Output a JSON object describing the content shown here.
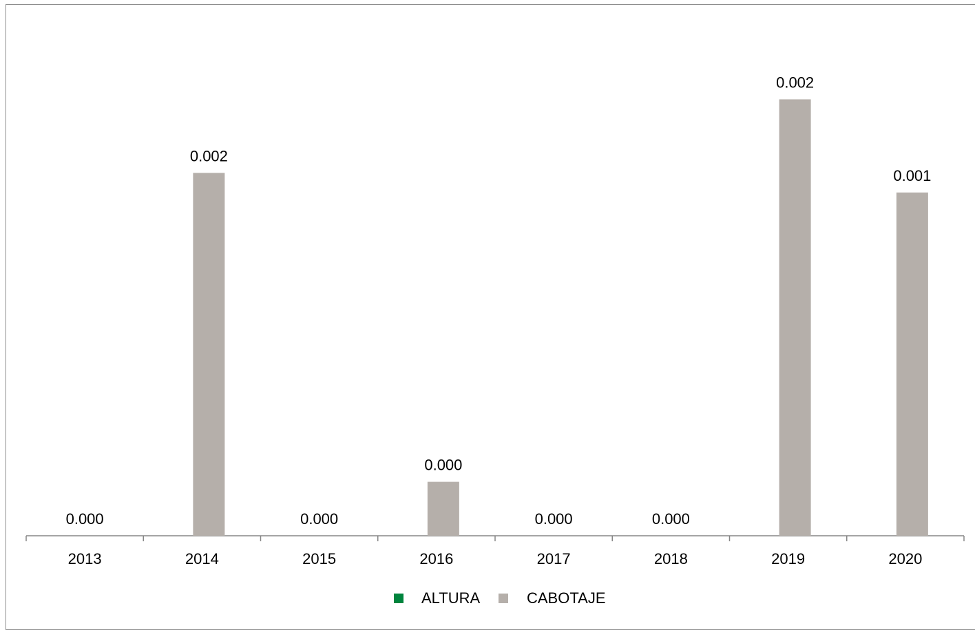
{
  "chart_data": {
    "type": "bar",
    "categories": [
      "2013",
      "2014",
      "2015",
      "2016",
      "2017",
      "2018",
      "2019",
      "2020"
    ],
    "series": [
      {
        "name": "ALTURA",
        "color": "#00843d",
        "values": [
          0,
          0,
          0,
          0,
          0,
          0,
          0,
          0
        ]
      },
      {
        "name": "CABOTAJE",
        "color": "#b5afaa",
        "values": [
          0,
          0.00148,
          0,
          0.00022,
          0,
          0,
          0.00178,
          0.0014
        ]
      }
    ],
    "data_labels": [
      "0.000",
      "0.002",
      "0.000",
      "0.000",
      "0.000",
      "0.000",
      "0.002",
      "0.001"
    ],
    "title": "",
    "xlabel": "",
    "ylabel": "",
    "ylim": [
      0,
      0.002
    ],
    "grid": false,
    "legend_position": "bottom"
  }
}
